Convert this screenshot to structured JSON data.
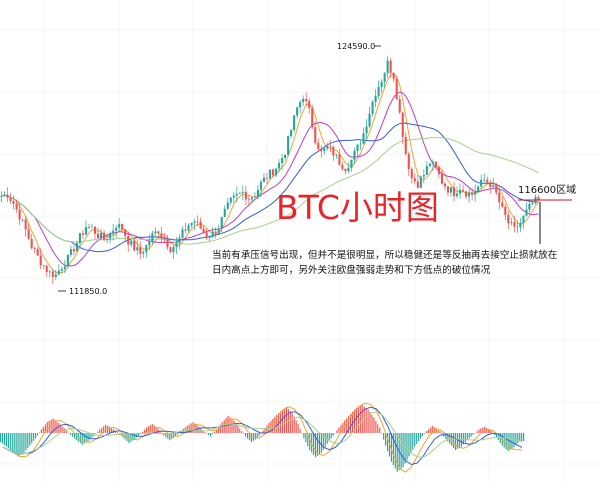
{
  "chart_data": {
    "type": "candlestick",
    "title": "BTC小时图",
    "timeframe": "1H",
    "price_annotations": {
      "high": {
        "label": "124590.0",
        "value": 124590.0
      },
      "low": {
        "label": "111850.0",
        "value": 111850.0
      },
      "resistance": {
        "label": "116600区域",
        "value": 116600
      }
    },
    "moving_averages": [
      {
        "color": "#f2a431"
      },
      {
        "color": "#c03bc4"
      },
      {
        "color": "#2f5fd6"
      },
      {
        "color": "#a8d08a"
      }
    ],
    "up_color": "#26a69a",
    "down_color": "#ef5350",
    "close_path_approx": [
      116800,
      116900,
      116400,
      115700,
      114900,
      114000,
      113400,
      112900,
      112500,
      112400,
      112900,
      113300,
      113900,
      114500,
      115100,
      115000,
      114600,
      114400,
      114700,
      115200,
      115000,
      114300,
      113900,
      113600,
      114000,
      114600,
      114900,
      114400,
      113900,
      114100,
      114700,
      115200,
      115400,
      115000,
      114600,
      114700,
      115100,
      115900,
      116500,
      116800,
      117000,
      116700,
      116900,
      117500,
      117900,
      118200,
      118600,
      119300,
      120500,
      121700,
      122400,
      121500,
      120000,
      119200,
      119500,
      119200,
      118700,
      118400,
      118800,
      119500,
      120300,
      121500,
      122600,
      123300,
      124200,
      123500,
      121400,
      119200,
      117800,
      117500,
      118000,
      118700,
      118300,
      117600,
      117200,
      117000,
      117300,
      117000,
      116900,
      117300,
      117700,
      117500,
      116900,
      116000,
      115300,
      114900,
      115300,
      115900,
      116400,
      116600
    ],
    "macd_histogram_approx": [
      -1.0,
      -1.5,
      -2.1,
      -2.6,
      -2.2,
      -1.4,
      -0.6,
      0.4,
      1.2,
      1.6,
      1.1,
      0.5,
      -0.2,
      -0.8,
      -1.3,
      -0.9,
      -0.3,
      0.4,
      0.9,
      0.6,
      0.1,
      -0.5,
      -1.1,
      -0.7,
      -0.1,
      0.6,
      1.0,
      0.5,
      -0.3,
      -0.8,
      -0.4,
      0.3,
      0.8,
      1.2,
      0.7,
      0.1,
      -0.4,
      0.4,
      1.2,
      1.9,
      1.4,
      0.5,
      -0.4,
      -1.0,
      -0.6,
      0.3,
      1.1,
      1.8,
      2.4,
      2.9,
      2.2,
      1.0,
      -0.6,
      -1.9,
      -2.7,
      -2.2,
      -1.2,
      -0.3,
      0.6,
      1.4,
      2.1,
      2.8,
      3.1,
      2.6,
      1.7,
      0.6,
      -1.4,
      -3.2,
      -4.3,
      -3.8,
      -2.6,
      -1.5,
      -0.6,
      0.2,
      0.8,
      0.4,
      -0.4,
      -1.2,
      -1.9,
      -1.5,
      -0.8,
      -0.2,
      0.4,
      0.7,
      0.3,
      -0.5,
      -1.4,
      -2.0,
      -1.6,
      -0.9
    ],
    "y_range": [
      111000,
      125500
    ]
  },
  "title_text": "BTC小时图",
  "high_label": "124590.0",
  "low_label": "111850.0",
  "resistance_label": "116600区域",
  "commentary": "当前有承压信号出现，但并不是很明显，所以稳健还是等反抽再去接空止损就放在日内高点上方即可，另外关注欧盘强弱走势和下方低点的破位情况"
}
